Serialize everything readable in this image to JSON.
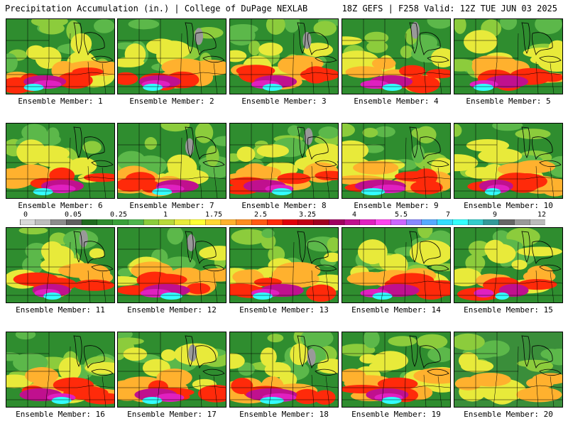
{
  "header": {
    "left_title": "Precipitation Accumulation (in.) | College of DuPage NEXLAB",
    "right_title": "18Z GEFS | F258 Valid: 12Z TUE JUN 03 2025"
  },
  "label_prefix": "Ensemble Member: ",
  "members": [
    {
      "num": "1",
      "label": "Ensemble Member: 1"
    },
    {
      "num": "2",
      "label": "Ensemble Member: 2"
    },
    {
      "num": "3",
      "label": "Ensemble Member: 3"
    },
    {
      "num": "4",
      "label": "Ensemble Member: 4"
    },
    {
      "num": "5",
      "label": "Ensemble Member: 5"
    },
    {
      "num": "6",
      "label": "Ensemble Member: 6"
    },
    {
      "num": "7",
      "label": "Ensemble Member: 7"
    },
    {
      "num": "8",
      "label": "Ensemble Member: 8"
    },
    {
      "num": "9",
      "label": "Ensemble Member: 9"
    },
    {
      "num": "10",
      "label": "Ensemble Member: 10"
    },
    {
      "num": "11",
      "label": "Ensemble Member: 11"
    },
    {
      "num": "12",
      "label": "Ensemble Member: 12"
    },
    {
      "num": "13",
      "label": "Ensemble Member: 13"
    },
    {
      "num": "14",
      "label": "Ensemble Member: 14"
    },
    {
      "num": "15",
      "label": "Ensemble Member: 15"
    },
    {
      "num": "16",
      "label": "Ensemble Member: 16"
    },
    {
      "num": "17",
      "label": "Ensemble Member: 17"
    },
    {
      "num": "18",
      "label": "Ensemble Member: 18"
    },
    {
      "num": "19",
      "label": "Ensemble Member: 19"
    },
    {
      "num": "20",
      "label": "Ensemble Member: 20"
    }
  ],
  "colorbar": {
    "tick_labels": [
      "0",
      "0.05",
      "0.25",
      "1",
      "1.75",
      "2.5",
      "3.25",
      "4",
      "5.5",
      "7",
      "9",
      "12"
    ],
    "colors": [
      "#d9d9d9",
      "#bdbdbd",
      "#8c8c8c",
      "#5f5f5f",
      "#1f6b1f",
      "#2e8b2e",
      "#3aa03a",
      "#4db44d",
      "#8ccc3c",
      "#b9d93a",
      "#e8ea3a",
      "#ffff33",
      "#ffd633",
      "#ffb12e",
      "#ff8c1f",
      "#ff5a14",
      "#ff2a0a",
      "#e0000a",
      "#c00015",
      "#a0001f",
      "#a00060",
      "#c0108e",
      "#e020c0",
      "#ff44ee",
      "#cc66ff",
      "#8888ff",
      "#55aaff",
      "#33ddff",
      "#33ffff",
      "#33cccc",
      "#339999",
      "#666666",
      "#999999",
      "#bbbbbb"
    ]
  }
}
